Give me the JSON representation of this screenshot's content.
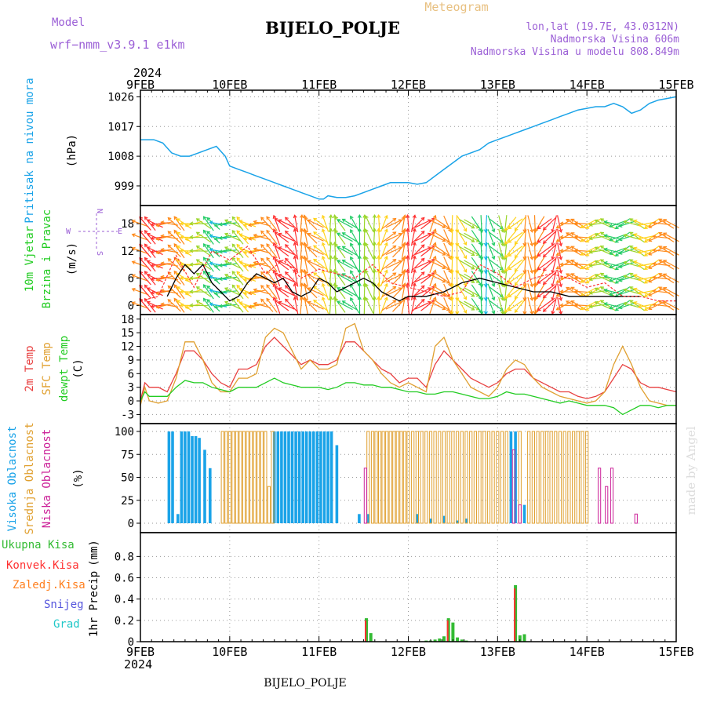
{
  "header": {
    "model_label": "Model",
    "model_name": "wrf−nmm_v3.9.1  e1km",
    "title": "BIJELO_POLJE",
    "product": "Meteogram",
    "lonlat": "lon,lat (19.7E, 43.0312N)",
    "altitude": "Nadmorska Visina 606m",
    "model_altitude": "Nadmorska Visina u modelu 808.849m"
  },
  "footer": {
    "station": "BIJELO_POLJE",
    "credit": "made by Angel"
  },
  "time_axis": {
    "year": "2024",
    "labels": [
      "9FEB",
      "10FEB",
      "11FEB",
      "12FEB",
      "13FEB",
      "14FEB",
      "15FEB"
    ]
  },
  "wind_compass": {
    "n": "N",
    "w": "W",
    "e": "E",
    "s": "S"
  },
  "colors": {
    "pressure": "#1aa3e8",
    "wind_speed": "#000000",
    "wind_gust": "#ff3030",
    "temp2m": "#e84040",
    "sfc_temp": "#e0a030",
    "dewpoint": "#22cc22",
    "high_cloud": "#1aa3e8",
    "mid_cloud": "#e0a030",
    "low_cloud": "#cc2299",
    "total_precip": "#33bb33",
    "conv_precip": "#ff3030",
    "frz_precip": "#ff8020",
    "snow": "#5555dd",
    "hail": "#20c8c8"
  },
  "chart_data": [
    {
      "type": "line",
      "panel": "pressure",
      "ylabel": "Pritisak na nivou mora",
      "unit": "(hPa)",
      "yticks": [
        999,
        1008,
        1017,
        1026
      ],
      "ylim": [
        994,
        1028
      ],
      "xlim": [
        0,
        6
      ],
      "series": [
        {
          "x": [
            0,
            0.08,
            0.15,
            0.25,
            0.35,
            0.45,
            0.55,
            0.65,
            0.75,
            0.85,
            0.95,
            1.0,
            1.1,
            1.2,
            1.3,
            1.4,
            1.5,
            1.6,
            1.7,
            1.8,
            1.9,
            2.0,
            2.05,
            2.1,
            2.2,
            2.3,
            2.4,
            2.5,
            2.6,
            2.7,
            2.8,
            2.9,
            3.0,
            3.1,
            3.2,
            3.3,
            3.4,
            3.5,
            3.6,
            3.7,
            3.8,
            3.9,
            4.0,
            4.1,
            4.2,
            4.3,
            4.4,
            4.5,
            4.6,
            4.7,
            4.8,
            4.9,
            5.0,
            5.1,
            5.2,
            5.3,
            5.4,
            5.5,
            5.6,
            5.7,
            5.8,
            5.9,
            6.0
          ],
          "values": [
            1013,
            1013,
            1013,
            1012,
            1009,
            1008,
            1008,
            1009,
            1010,
            1011,
            1008,
            1005,
            1004,
            1003,
            1002,
            1001,
            1000,
            999,
            998,
            997,
            996,
            995,
            995,
            996,
            995.5,
            995.5,
            996,
            997,
            998,
            999,
            1000,
            1000,
            1000,
            999.5,
            1000,
            1002,
            1004,
            1006,
            1008,
            1009,
            1010,
            1012,
            1013,
            1014,
            1015,
            1016,
            1017,
            1018,
            1019,
            1020,
            1021,
            1022,
            1022.5,
            1023,
            1023,
            1024,
            1023,
            1021,
            1022,
            1024,
            1025,
            1025.5,
            1026
          ]
        }
      ]
    },
    {
      "type": "line",
      "panel": "wind",
      "ylabel": "10m Vjetar",
      "ylabel2": "Brzina i Pravac",
      "unit": "(m/s)",
      "yticks": [
        0,
        6,
        12,
        18
      ],
      "ylim": [
        -2,
        22
      ],
      "xlim": [
        0,
        6
      ],
      "series": [
        {
          "role": "speed",
          "x": [
            0.3,
            0.4,
            0.5,
            0.6,
            0.7,
            0.8,
            0.9,
            1.0,
            1.1,
            1.2,
            1.3,
            1.4,
            1.5,
            1.6,
            1.7,
            1.8,
            1.9,
            2.0,
            2.1,
            2.2,
            2.3,
            2.4,
            2.5,
            2.6,
            2.7,
            2.8,
            2.9,
            3.0,
            3.2,
            3.4,
            3.6,
            3.8,
            4.0,
            4.2,
            4.4,
            4.6,
            4.8,
            5.0,
            5.2,
            5.4,
            5.6
          ],
          "values": [
            2,
            6,
            9,
            7,
            9,
            5,
            3,
            1,
            2,
            5,
            7,
            6,
            5,
            6,
            3,
            2,
            3,
            6,
            5,
            3,
            4,
            5,
            6,
            5,
            3,
            2,
            1,
            2,
            2,
            3,
            5,
            6,
            5,
            4,
            3,
            3,
            2,
            2,
            2,
            2,
            2
          ]
        },
        {
          "role": "gust",
          "x": [
            0,
            0.2,
            0.4,
            0.6,
            0.8,
            1.0,
            1.2,
            1.4,
            1.6,
            1.8,
            2.0,
            2.2,
            2.4,
            2.6,
            2.8,
            3.0,
            3.2,
            3.4,
            3.6,
            3.8,
            4.0,
            4.2,
            4.4,
            4.6,
            4.8,
            5.0,
            5.2,
            5.4,
            5.6,
            5.8,
            6.0
          ],
          "values": [
            1,
            2,
            11,
            4,
            12,
            10,
            13,
            7,
            10,
            6,
            8,
            7,
            6,
            9,
            5,
            4,
            3,
            2,
            3,
            9,
            7,
            4,
            6,
            7,
            6,
            4,
            5,
            2,
            2,
            1,
            1
          ]
        }
      ]
    },
    {
      "type": "line",
      "panel": "temperature",
      "ylabel": "2m Temp",
      "ylabel2": "SFC Temp",
      "ylabel3": "dewpt Temp",
      "unit": "(C)",
      "yticks": [
        -3,
        0,
        3,
        6,
        9,
        12,
        15,
        18
      ],
      "ylim": [
        -5,
        19
      ],
      "xlim": [
        0,
        6
      ],
      "series": [
        {
          "name": "2m Temp",
          "x": [
            0,
            0.05,
            0.1,
            0.2,
            0.3,
            0.4,
            0.5,
            0.6,
            0.7,
            0.8,
            0.9,
            1.0,
            1.1,
            1.2,
            1.3,
            1.4,
            1.5,
            1.6,
            1.7,
            1.8,
            1.9,
            2.0,
            2.1,
            2.2,
            2.3,
            2.4,
            2.5,
            2.6,
            2.7,
            2.8,
            2.9,
            3.0,
            3.1,
            3.2,
            3.3,
            3.4,
            3.5,
            3.6,
            3.7,
            3.8,
            3.9,
            4.0,
            4.1,
            4.2,
            4.3,
            4.4,
            4.5,
            4.6,
            4.7,
            4.8,
            4.9,
            5.0,
            5.1,
            5.2,
            5.3,
            5.4,
            5.5,
            5.6,
            5.7,
            5.8,
            5.9,
            6.0
          ],
          "values": [
            0,
            4,
            3,
            3,
            2,
            6,
            11,
            11,
            9,
            6,
            4,
            3,
            7,
            7,
            8,
            12,
            14,
            12,
            10,
            8,
            9,
            8,
            8,
            9,
            13,
            13,
            11,
            9,
            7,
            6,
            4,
            5,
            5,
            3,
            8,
            11,
            9,
            7,
            5,
            4,
            3,
            4,
            6,
            7,
            7,
            5,
            4,
            3,
            2,
            2,
            1,
            0.5,
            1,
            2,
            5,
            8,
            7,
            4,
            3,
            3,
            2.5,
            2
          ]
        },
        {
          "name": "SFC Temp",
          "x": [
            0,
            0.05,
            0.1,
            0.2,
            0.3,
            0.4,
            0.5,
            0.6,
            0.7,
            0.8,
            0.9,
            1.0,
            1.1,
            1.2,
            1.3,
            1.4,
            1.5,
            1.6,
            1.7,
            1.8,
            1.9,
            2.0,
            2.1,
            2.2,
            2.3,
            2.4,
            2.5,
            2.6,
            2.7,
            2.8,
            2.9,
            3.0,
            3.1,
            3.2,
            3.3,
            3.4,
            3.5,
            3.6,
            3.7,
            3.8,
            3.9,
            4.0,
            4.1,
            4.2,
            4.3,
            4.4,
            4.5,
            4.6,
            4.7,
            4.8,
            4.9,
            5.0,
            5.1,
            5.2,
            5.3,
            5.4,
            5.5,
            5.6,
            5.7,
            5.8,
            5.9,
            6.0
          ],
          "values": [
            -1,
            3,
            0,
            -0.5,
            0,
            5,
            13,
            13,
            9,
            4,
            2,
            2,
            5,
            5,
            6,
            14,
            16,
            15,
            11,
            7,
            9,
            7,
            7,
            8,
            16,
            17,
            11,
            9,
            6,
            4,
            3,
            4,
            3,
            2,
            12,
            14,
            9,
            6,
            3,
            2,
            1,
            3,
            7,
            9,
            8,
            5,
            3,
            2,
            1,
            0.5,
            0,
            -0.5,
            0,
            2,
            8,
            12,
            8,
            3,
            0,
            -0.5,
            -1,
            -1
          ]
        },
        {
          "name": "dewpt Temp",
          "x": [
            0,
            0.05,
            0.1,
            0.2,
            0.3,
            0.4,
            0.5,
            0.6,
            0.7,
            0.8,
            0.9,
            1.0,
            1.1,
            1.2,
            1.3,
            1.4,
            1.5,
            1.6,
            1.7,
            1.8,
            1.9,
            2.0,
            2.1,
            2.2,
            2.3,
            2.4,
            2.5,
            2.6,
            2.7,
            2.8,
            2.9,
            3.0,
            3.1,
            3.2,
            3.3,
            3.4,
            3.5,
            3.6,
            3.7,
            3.8,
            3.9,
            4.0,
            4.1,
            4.2,
            4.3,
            4.4,
            4.5,
            4.6,
            4.7,
            4.8,
            4.9,
            5.0,
            5.1,
            5.2,
            5.3,
            5.4,
            5.5,
            5.6,
            5.7,
            5.8,
            5.9,
            6.0
          ],
          "values": [
            0,
            2,
            1,
            1,
            1,
            3,
            4.5,
            4,
            4,
            3,
            2.5,
            2,
            3,
            3,
            3,
            4,
            5,
            4,
            3.5,
            3,
            3,
            3,
            2.5,
            3,
            4,
            4,
            3.5,
            3.5,
            3,
            3,
            2.5,
            2,
            2,
            1.5,
            1.5,
            2,
            2,
            1.5,
            1,
            0.5,
            0.5,
            1,
            2,
            1.5,
            1.5,
            1,
            0.5,
            0,
            -0.5,
            0,
            -0.5,
            -1,
            -1,
            -1,
            -1.5,
            -3,
            -2,
            -1,
            -1,
            -1.5,
            -1,
            -1
          ]
        }
      ]
    },
    {
      "type": "bar",
      "panel": "clouds",
      "ylabel": "Visoka Oblacnost",
      "ylabel2": "Srednja Oblacnost",
      "ylabel3": "Niska  Oblacnost",
      "unit": "(%)",
      "yticks": [
        0,
        25,
        50,
        75,
        100
      ],
      "ylim": [
        0,
        100
      ],
      "xlim": [
        0,
        6
      ],
      "series": [
        {
          "name": "Visoka Oblacnost",
          "x": [
            0.32,
            0.36,
            0.42,
            0.46,
            0.5,
            0.54,
            0.58,
            0.62,
            0.66,
            0.72,
            0.78,
            1.5,
            1.54,
            1.58,
            1.62,
            1.66,
            1.7,
            1.74,
            1.78,
            1.82,
            1.86,
            1.9,
            1.94,
            1.98,
            2.02,
            2.06,
            2.1,
            2.14,
            2.2,
            2.45,
            2.55,
            3.1,
            3.25,
            3.4,
            3.55,
            3.65,
            4.15,
            4.2,
            4.3
          ],
          "values": [
            100,
            100,
            10,
            100,
            100,
            100,
            95,
            95,
            93,
            80,
            60,
            100,
            100,
            100,
            100,
            100,
            100,
            100,
            100,
            100,
            100,
            100,
            100,
            100,
            100,
            100,
            100,
            100,
            85,
            10,
            10,
            10,
            5,
            8,
            3,
            5,
            100,
            100,
            20
          ]
        },
        {
          "name": "Srednja Oblacnost",
          "x": [
            0.92,
            0.96,
            1.0,
            1.04,
            1.08,
            1.12,
            1.16,
            1.2,
            1.24,
            1.28,
            1.32,
            1.36,
            1.4,
            1.44,
            1.48,
            2.55,
            2.6,
            2.64,
            2.68,
            2.72,
            2.76,
            2.8,
            2.84,
            2.88,
            2.92,
            2.96,
            3.0,
            3.05,
            3.1,
            3.15,
            3.2,
            3.25,
            3.3,
            3.35,
            3.4,
            3.45,
            3.5,
            3.55,
            3.6,
            3.65,
            3.7,
            3.75,
            3.8,
            3.85,
            3.9,
            3.95,
            4.0,
            4.05,
            4.1,
            4.25,
            4.35,
            4.4,
            4.45,
            4.5,
            4.55,
            4.6,
            4.65,
            4.7,
            4.75,
            4.8,
            4.85,
            4.9,
            4.95,
            5.0
          ],
          "values": [
            100,
            100,
            100,
            100,
            100,
            100,
            100,
            100,
            100,
            100,
            100,
            100,
            100,
            40,
            100,
            100,
            100,
            100,
            100,
            100,
            100,
            100,
            100,
            100,
            100,
            100,
            100,
            100,
            100,
            100,
            100,
            100,
            100,
            100,
            100,
            100,
            100,
            100,
            100,
            100,
            100,
            100,
            100,
            100,
            100,
            100,
            100,
            100,
            100,
            100,
            100,
            100,
            100,
            100,
            100,
            100,
            100,
            100,
            100,
            100,
            100,
            100,
            100,
            100
          ]
        },
        {
          "name": "Niska  Oblacnost",
          "x": [
            2.52,
            4.18,
            4.25,
            5.14,
            5.22,
            5.28,
            5.55
          ],
          "values": [
            60,
            80,
            20,
            60,
            40,
            60,
            10
          ]
        }
      ]
    },
    {
      "type": "bar",
      "panel": "precip",
      "ylabel": "1hr Precip",
      "unit": "(mm)",
      "yticks": [
        0,
        0.2,
        0.4,
        0.6,
        0.8
      ],
      "ylim": [
        0,
        0.95
      ],
      "xlim": [
        0,
        6
      ],
      "legend": [
        "Ukupna  Kisa",
        "Konvek.Kisa",
        "Zaledj.Kisa",
        "Snijeg",
        "Grad"
      ],
      "series": [
        {
          "name": "Ukupna  Kisa",
          "x": [
            2.53,
            2.58,
            3.2,
            3.25,
            3.3,
            3.35,
            3.4,
            3.45,
            3.5,
            3.55,
            3.6,
            3.65,
            4.2,
            4.25,
            4.3
          ],
          "values": [
            0.22,
            0.08,
            0.01,
            0.01,
            0.02,
            0.03,
            0.05,
            0.22,
            0.18,
            0.04,
            0.02,
            0.01,
            0.53,
            0.06,
            0.07
          ]
        },
        {
          "name": "Konvek.Kisa",
          "x": [
            2.53,
            3.45,
            4.2
          ],
          "values": [
            0.2,
            0.2,
            0.5
          ]
        }
      ]
    }
  ]
}
